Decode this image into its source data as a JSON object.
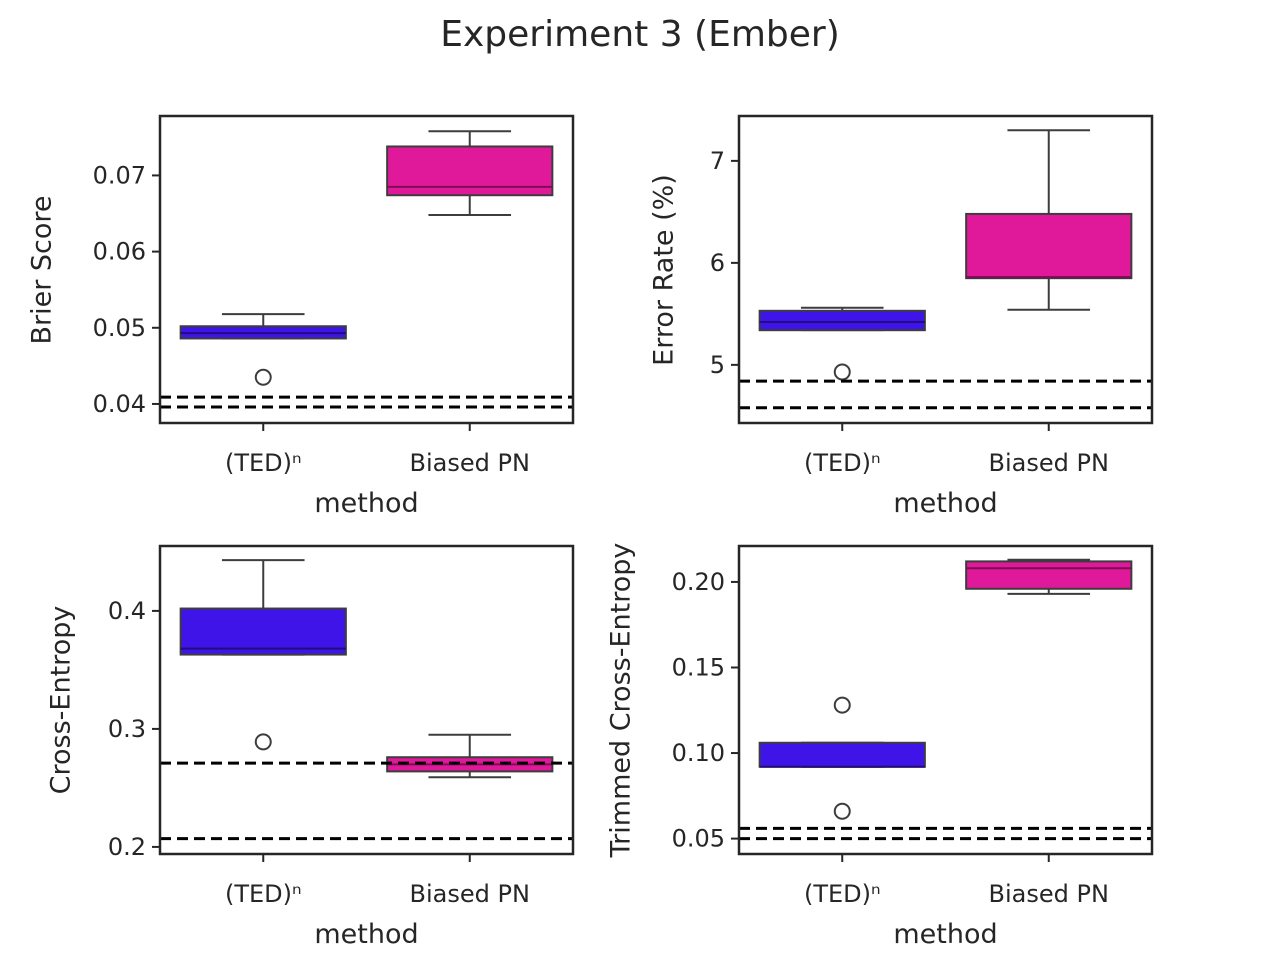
{
  "figure": {
    "title": "Experiment 3 (Ember)"
  },
  "chart_data": [
    {
      "type": "box",
      "ylabel": "Brier Score",
      "xlabel": "method",
      "categories": [
        "(TED)ⁿ",
        "Biased PN"
      ],
      "ylim": [
        0.0375,
        0.0778
      ],
      "yticks": [
        0.04,
        0.05,
        0.06,
        0.07
      ],
      "ytick_labels": [
        "0.04",
        "0.05",
        "0.06",
        "0.07"
      ],
      "boxes": [
        {
          "q1": 0.0486,
          "median": 0.0493,
          "q3": 0.0502,
          "whisker_low": 0.0486,
          "whisker_high": 0.0518,
          "outliers": [
            0.0435
          ],
          "color": "#3f14e8"
        },
        {
          "q1": 0.0674,
          "median": 0.0685,
          "q3": 0.0738,
          "whisker_low": 0.0648,
          "whisker_high": 0.0758,
          "outliers": [],
          "color": "#e0189a"
        }
      ],
      "hlines": [
        0.0409,
        0.0396
      ]
    },
    {
      "type": "box",
      "ylabel": "Error Rate (%)",
      "xlabel": "method",
      "categories": [
        "(TED)ⁿ",
        "Biased PN"
      ],
      "ylim": [
        4.43,
        7.44
      ],
      "yticks": [
        5,
        6,
        7
      ],
      "ytick_labels": [
        "5",
        "6",
        "7"
      ],
      "boxes": [
        {
          "q1": 5.34,
          "median": 5.42,
          "q3": 5.53,
          "whisker_low": 5.34,
          "whisker_high": 5.56,
          "outliers": [
            4.93
          ],
          "color": "#3f14e8"
        },
        {
          "q1": 5.85,
          "median": 5.86,
          "q3": 6.48,
          "whisker_low": 5.54,
          "whisker_high": 7.3,
          "outliers": [],
          "color": "#e0189a"
        }
      ],
      "hlines": [
        4.84,
        4.58
      ]
    },
    {
      "type": "box",
      "ylabel": "Cross-Entropy",
      "xlabel": "method",
      "categories": [
        "(TED)ⁿ",
        "Biased PN"
      ],
      "ylim": [
        0.194,
        0.455
      ],
      "yticks": [
        0.2,
        0.3,
        0.4
      ],
      "ytick_labels": [
        "0.2",
        "0.3",
        "0.4"
      ],
      "boxes": [
        {
          "q1": 0.363,
          "median": 0.368,
          "q3": 0.402,
          "whisker_low": 0.363,
          "whisker_high": 0.443,
          "outliers": [
            0.289
          ],
          "color": "#3f14e8"
        },
        {
          "q1": 0.264,
          "median": 0.27,
          "q3": 0.276,
          "whisker_low": 0.259,
          "whisker_high": 0.295,
          "outliers": [],
          "color": "#e0189a"
        }
      ],
      "hlines": [
        0.271,
        0.207
      ]
    },
    {
      "type": "box",
      "ylabel": "Trimmed Cross-Entropy",
      "xlabel": "method",
      "categories": [
        "(TED)ⁿ",
        "Biased PN"
      ],
      "ylim": [
        0.041,
        0.221
      ],
      "yticks": [
        0.05,
        0.1,
        0.15,
        0.2
      ],
      "ytick_labels": [
        "0.05",
        "0.10",
        "0.15",
        "0.20"
      ],
      "boxes": [
        {
          "q1": 0.092,
          "median": 0.092,
          "q3": 0.106,
          "whisker_low": 0.092,
          "whisker_high": 0.106,
          "outliers": [
            0.128,
            0.066
          ],
          "color": "#3f14e8"
        },
        {
          "q1": 0.196,
          "median": 0.208,
          "q3": 0.212,
          "whisker_low": 0.193,
          "whisker_high": 0.213,
          "outliers": [],
          "color": "#e0189a"
        }
      ],
      "hlines": [
        0.056,
        0.05
      ]
    }
  ]
}
